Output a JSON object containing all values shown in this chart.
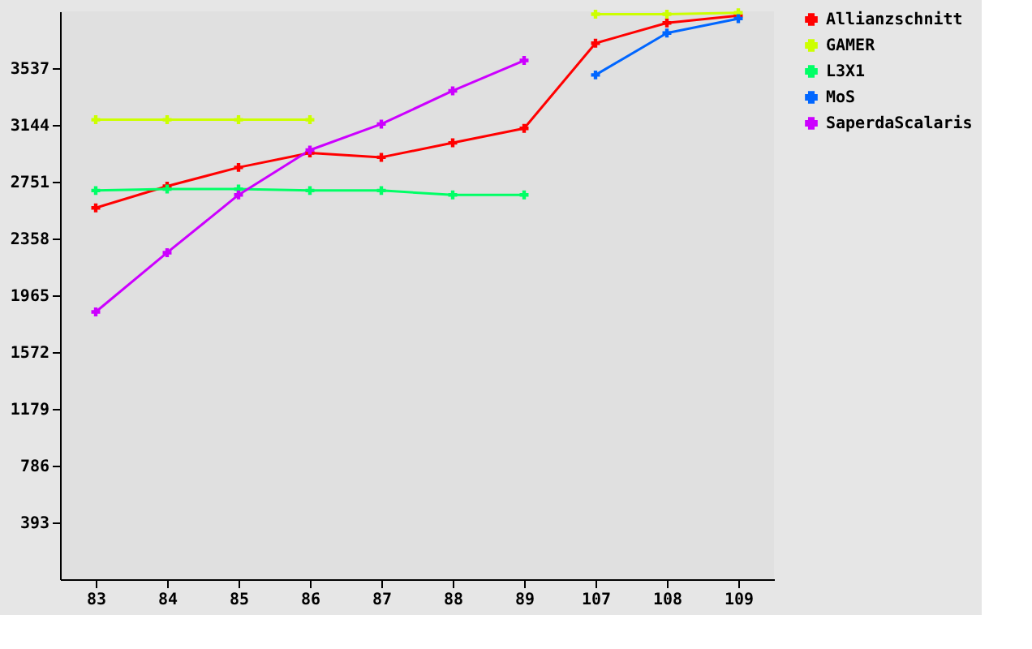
{
  "chart_data": {
    "type": "line",
    "categories": [
      "83",
      "84",
      "85",
      "86",
      "87",
      "88",
      "89",
      "107",
      "108",
      "109"
    ],
    "series": [
      {
        "name": "Allianzschnitt",
        "color": "#ff0000",
        "values": [
          2570,
          2720,
          2850,
          2950,
          2920,
          3020,
          3120,
          3710,
          3850,
          3900
        ]
      },
      {
        "name": "GAMER",
        "color": "#ccff00",
        "values": [
          3180,
          3180,
          3180,
          3180,
          null,
          null,
          null,
          3910,
          3910,
          3920
        ]
      },
      {
        "name": "L3X1",
        "color": "#00ff66",
        "values": [
          2690,
          2700,
          2700,
          2690,
          2690,
          2660,
          2660,
          null,
          null,
          null
        ]
      },
      {
        "name": "MoS",
        "color": "#0066ff",
        "values": [
          null,
          null,
          null,
          null,
          null,
          null,
          null,
          3490,
          3780,
          3880
        ]
      },
      {
        "name": "SaperdaScalaris",
        "color": "#cc00ff",
        "values": [
          1850,
          2260,
          2660,
          2970,
          3150,
          3380,
          3590,
          null,
          null,
          null
        ]
      }
    ],
    "ylim": [
      0,
      3930
    ],
    "yticks": [
      393,
      786,
      1179,
      1572,
      1965,
      2358,
      2751,
      3144,
      3537
    ],
    "grid": false,
    "legend": "right",
    "marker": "cross",
    "line_style": "solid"
  }
}
